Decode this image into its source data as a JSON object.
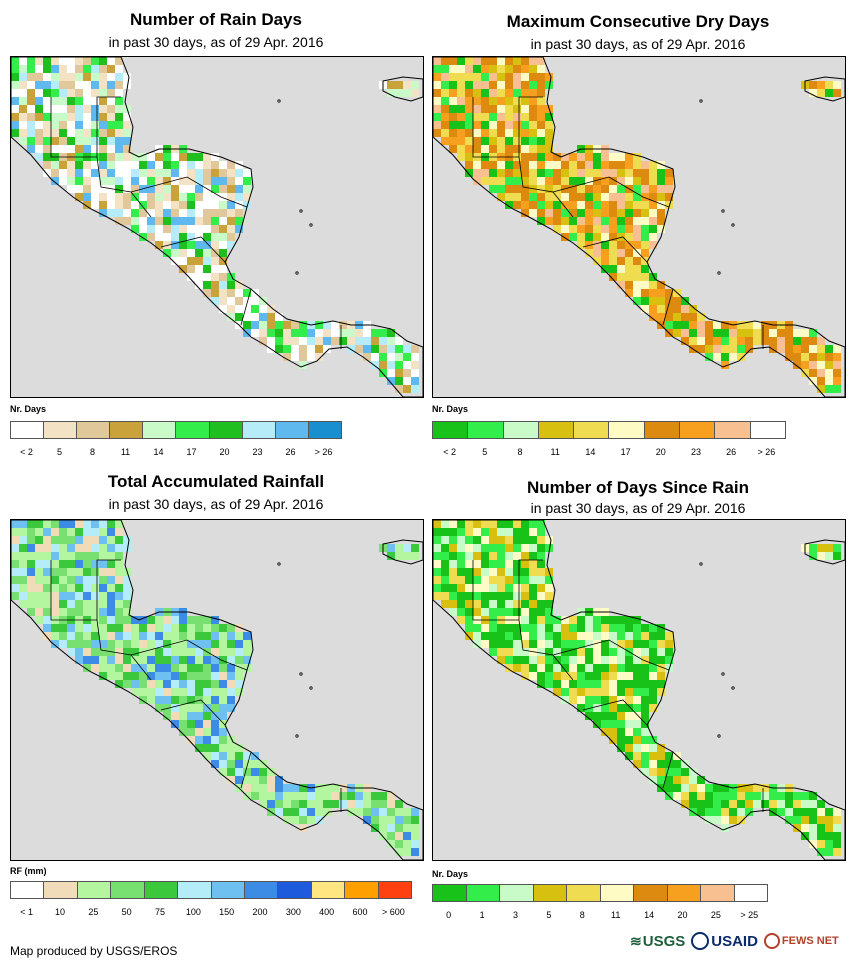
{
  "panels": [
    {
      "title": "Number of Rain Days",
      "subtitle": "in past 30 days, as of 29 Apr. 2016",
      "legend_title": "Nr. Days",
      "legend_colors": [
        "#ffffff",
        "#f3e2c4",
        "#e0c89a",
        "#c9a23c",
        "#c9fbc9",
        "#33ee4a",
        "#1fbf1f",
        "#b6ecf8",
        "#60b9ee",
        "#1a8fd0"
      ],
      "legend_labels": [
        "< 2",
        "5",
        "8",
        "11",
        "14",
        "17",
        "20",
        "23",
        "26",
        "> 26"
      ],
      "palette": [
        "#ffffff",
        "#f3e2c4",
        "#e0c89a",
        "#c9a23c",
        "#c9fbc9",
        "#33ee4a",
        "#1fbf1f",
        "#b6ecf8",
        "#60b9ee"
      ]
    },
    {
      "title": "Maximum Consecutive Dry Days",
      "subtitle": "in past 30 days, as of 29 Apr. 2016",
      "legend_title": "Nr. Days",
      "legend_colors": [
        "#19c219",
        "#33ee4a",
        "#c9fbc9",
        "#d8c010",
        "#f0dc50",
        "#fffbc4",
        "#dc8a10",
        "#f7a020",
        "#f8c090",
        "#ffffff"
      ],
      "legend_labels": [
        "< 2",
        "5",
        "8",
        "11",
        "14",
        "17",
        "20",
        "23",
        "26",
        "> 26"
      ],
      "palette": [
        "#dc8a10",
        "#f7a020",
        "#f0dc50",
        "#fffbc4",
        "#d8c010",
        "#f8c090",
        "#33ee4a",
        "#19c219"
      ]
    },
    {
      "title": "Total Accumulated Rainfall",
      "subtitle": "in past 30 days, as of 29 Apr. 2016",
      "legend_title": "RF (mm)",
      "legend_colors": [
        "#ffffff",
        "#f0dcb8",
        "#b4f5a0",
        "#78e070",
        "#3cc83c",
        "#b4ecf8",
        "#6ec0f0",
        "#3c8ce6",
        "#1e5adc",
        "#ffe680",
        "#ffa000",
        "#ff4010"
      ],
      "legend_labels": [
        "< 1",
        "10",
        "25",
        "50",
        "75",
        "100",
        "150",
        "200",
        "300",
        "400",
        "600",
        "> 600"
      ],
      "palette": [
        "#b4f5a0",
        "#78e070",
        "#3cc83c",
        "#b4ecf8",
        "#6ec0f0",
        "#3c8ce6",
        "#f0dcb8"
      ]
    },
    {
      "title": "Number of Days Since Rain",
      "subtitle": "in past 30 days, as of 29 Apr. 2016",
      "legend_title": "Nr. Days",
      "legend_colors": [
        "#19c219",
        "#33ee4a",
        "#c9fbc9",
        "#d8c010",
        "#f0dc50",
        "#fffbc4",
        "#dc8a10",
        "#f7a020",
        "#f8c090",
        "#ffffff"
      ],
      "legend_labels": [
        "0",
        "1",
        "3",
        "5",
        "8",
        "11",
        "14",
        "20",
        "25",
        "> 25"
      ],
      "palette": [
        "#19c219",
        "#33ee4a",
        "#c9fbc9",
        "#f0dc50",
        "#d8c010",
        "#fffbc4"
      ]
    }
  ],
  "footer": "Map produced by USGS/EROS",
  "logos": {
    "usgs": "USGS",
    "usaid": "USAID",
    "fews": "FEWS NET"
  },
  "map_background": "#dcdcdc"
}
